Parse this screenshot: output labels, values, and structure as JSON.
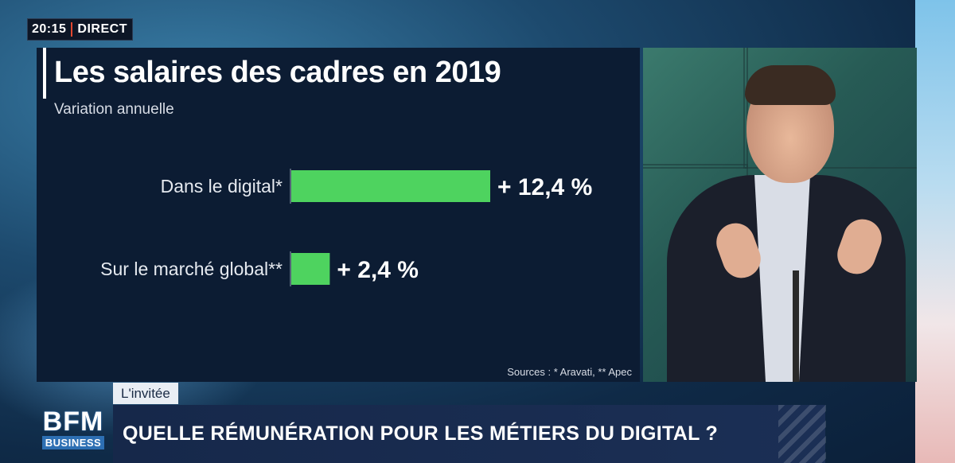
{
  "broadcast": {
    "time": "20:15",
    "live_label": "DIRECT",
    "segment_tag": "L'invitée",
    "headline": "QUELLE RÉMUNÉRATION POUR LES MÉTIERS DU DIGITAL ?",
    "logo_main": "BFM",
    "logo_sub": "BUSINESS"
  },
  "colors": {
    "bar": "#4ed35f",
    "panel": "#0c1c33",
    "accent_red": "#e2472f"
  },
  "chart_data": {
    "type": "bar",
    "orientation": "horizontal",
    "title": "Les salaires des cadres en 2019",
    "subtitle": "Variation annuelle",
    "categories": [
      "Dans le digital*",
      "Sur le marché global**"
    ],
    "values": [
      12.4,
      2.4
    ],
    "value_labels": [
      "+ 12,4 %",
      "+ 2,4 %"
    ],
    "unit": "%",
    "xlim": [
      0,
      12.4
    ],
    "grid": false,
    "legend": "none",
    "source": "Sources : * Aravati, ** Apec"
  }
}
